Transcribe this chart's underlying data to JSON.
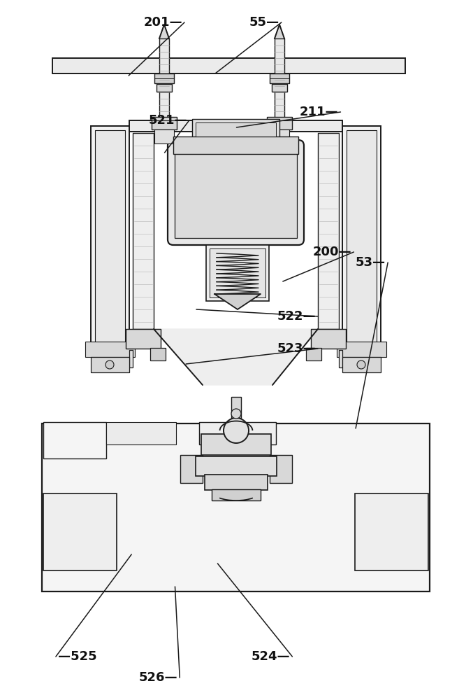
{
  "bg_color": "#ffffff",
  "lc": "#1a1a1a",
  "figsize": [
    6.77,
    10.0
  ],
  "dpi": 100,
  "annotations": [
    [
      "201",
      [
        0.39,
        0.968
      ],
      [
        0.272,
        0.892
      ]
    ],
    [
      "55",
      [
        0.595,
        0.968
      ],
      [
        0.455,
        0.895
      ]
    ],
    [
      "211",
      [
        0.72,
        0.84
      ],
      [
        0.5,
        0.818
      ]
    ],
    [
      "521",
      [
        0.4,
        0.828
      ],
      [
        0.348,
        0.782
      ]
    ],
    [
      "200",
      [
        0.748,
        0.64
      ],
      [
        0.598,
        0.598
      ]
    ],
    [
      "522",
      [
        0.672,
        0.548
      ],
      [
        0.415,
        0.558
      ]
    ],
    [
      "523",
      [
        0.672,
        0.502
      ],
      [
        0.393,
        0.48
      ]
    ],
    [
      "53",
      [
        0.82,
        0.625
      ],
      [
        0.752,
        0.388
      ]
    ],
    [
      "525",
      [
        0.118,
        0.062
      ],
      [
        0.278,
        0.208
      ]
    ],
    [
      "526",
      [
        0.38,
        0.032
      ],
      [
        0.37,
        0.162
      ]
    ],
    [
      "524",
      [
        0.618,
        0.062
      ],
      [
        0.46,
        0.195
      ]
    ]
  ]
}
